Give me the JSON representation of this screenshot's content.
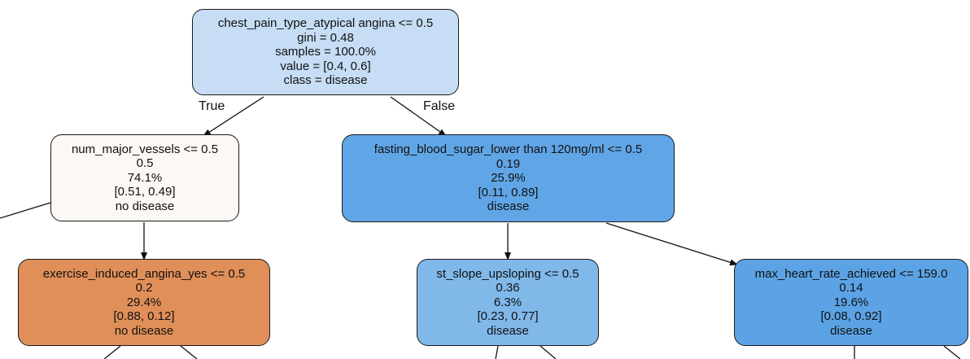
{
  "diagram": {
    "type": "decision-tree",
    "nodes": [
      {
        "id": "root",
        "lines": [
          "chest_pain_type_atypical angina <= 0.5",
          "gini = 0.48",
          "samples = 100.0%",
          "value = [0.4, 0.6]",
          "class = disease"
        ],
        "fill": "#c6ddf5"
      },
      {
        "id": "left",
        "lines": [
          "num_major_vessels <= 0.5",
          "0.5",
          "74.1%",
          "[0.51, 0.49]",
          "no disease"
        ],
        "fill": "#fcf8f4"
      },
      {
        "id": "right",
        "lines": [
          "fasting_blood_sugar_lower than 120mg/ml <= 0.5",
          "0.19",
          "25.9%",
          "[0.11, 0.89]",
          "disease"
        ],
        "fill": "#60a6e6"
      },
      {
        "id": "left-child",
        "lines": [
          "exercise_induced_angina_yes <= 0.5",
          "0.2",
          "29.4%",
          "[0.88, 0.12]",
          "no disease"
        ],
        "fill": "#e08f59"
      },
      {
        "id": "mid-child",
        "lines": [
          "st_slope_upsloping <= 0.5",
          "0.36",
          "6.3%",
          "[0.23, 0.77]",
          "disease"
        ],
        "fill": "#81b8ea"
      },
      {
        "id": "right-child",
        "lines": [
          "max_heart_rate_achieved <= 159.0",
          "0.14",
          "19.6%",
          "[0.08, 0.92]",
          "disease"
        ],
        "fill": "#5ca3e5"
      }
    ],
    "edge_labels": {
      "true": "True",
      "false": "False"
    }
  }
}
